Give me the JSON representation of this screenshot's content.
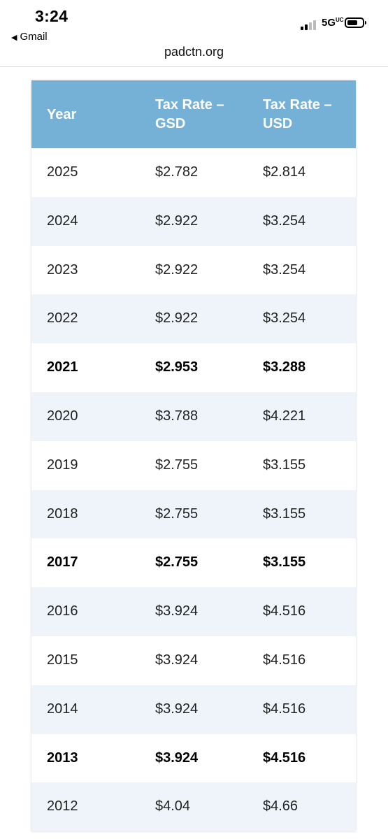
{
  "status_bar": {
    "time": "3:24",
    "back_app": "Gmail",
    "network": "5G",
    "network_sup": "UC"
  },
  "browser": {
    "url": "padctn.org"
  },
  "table": {
    "headers": [
      "Year",
      "Tax Rate – GSD",
      "Tax Rate – USD"
    ],
    "rows": [
      {
        "year": "2025",
        "gsd": "$2.782",
        "usd": "$2.814",
        "bold": false
      },
      {
        "year": "2024",
        "gsd": "$2.922",
        "usd": "$3.254",
        "bold": false
      },
      {
        "year": "2023",
        "gsd": "$2.922",
        "usd": "$3.254",
        "bold": false
      },
      {
        "year": "2022",
        "gsd": "$2.922",
        "usd": "$3.254",
        "bold": false
      },
      {
        "year": "2021",
        "gsd": "$2.953",
        "usd": "$3.288",
        "bold": true
      },
      {
        "year": "2020",
        "gsd": "$3.788",
        "usd": "$4.221",
        "bold": false
      },
      {
        "year": "2019",
        "gsd": "$2.755",
        "usd": "$3.155",
        "bold": false
      },
      {
        "year": "2018",
        "gsd": "$2.755",
        "usd": "$3.155",
        "bold": false
      },
      {
        "year": "2017",
        "gsd": "$2.755",
        "usd": "$3.155",
        "bold": true
      },
      {
        "year": "2016",
        "gsd": "$3.924",
        "usd": "$4.516",
        "bold": false
      },
      {
        "year": "2015",
        "gsd": "$3.924",
        "usd": "$4.516",
        "bold": false
      },
      {
        "year": "2014",
        "gsd": "$3.924",
        "usd": "$4.516",
        "bold": false
      },
      {
        "year": "2013",
        "gsd": "$3.924",
        "usd": "$4.516",
        "bold": true
      },
      {
        "year": "2012",
        "gsd": "$4.04",
        "usd": "$4.66",
        "bold": false
      }
    ]
  },
  "colors": {
    "header_bg": "#75b1d6",
    "alt_row_bg": "#eef4fa",
    "header_text": "#ffffff"
  }
}
